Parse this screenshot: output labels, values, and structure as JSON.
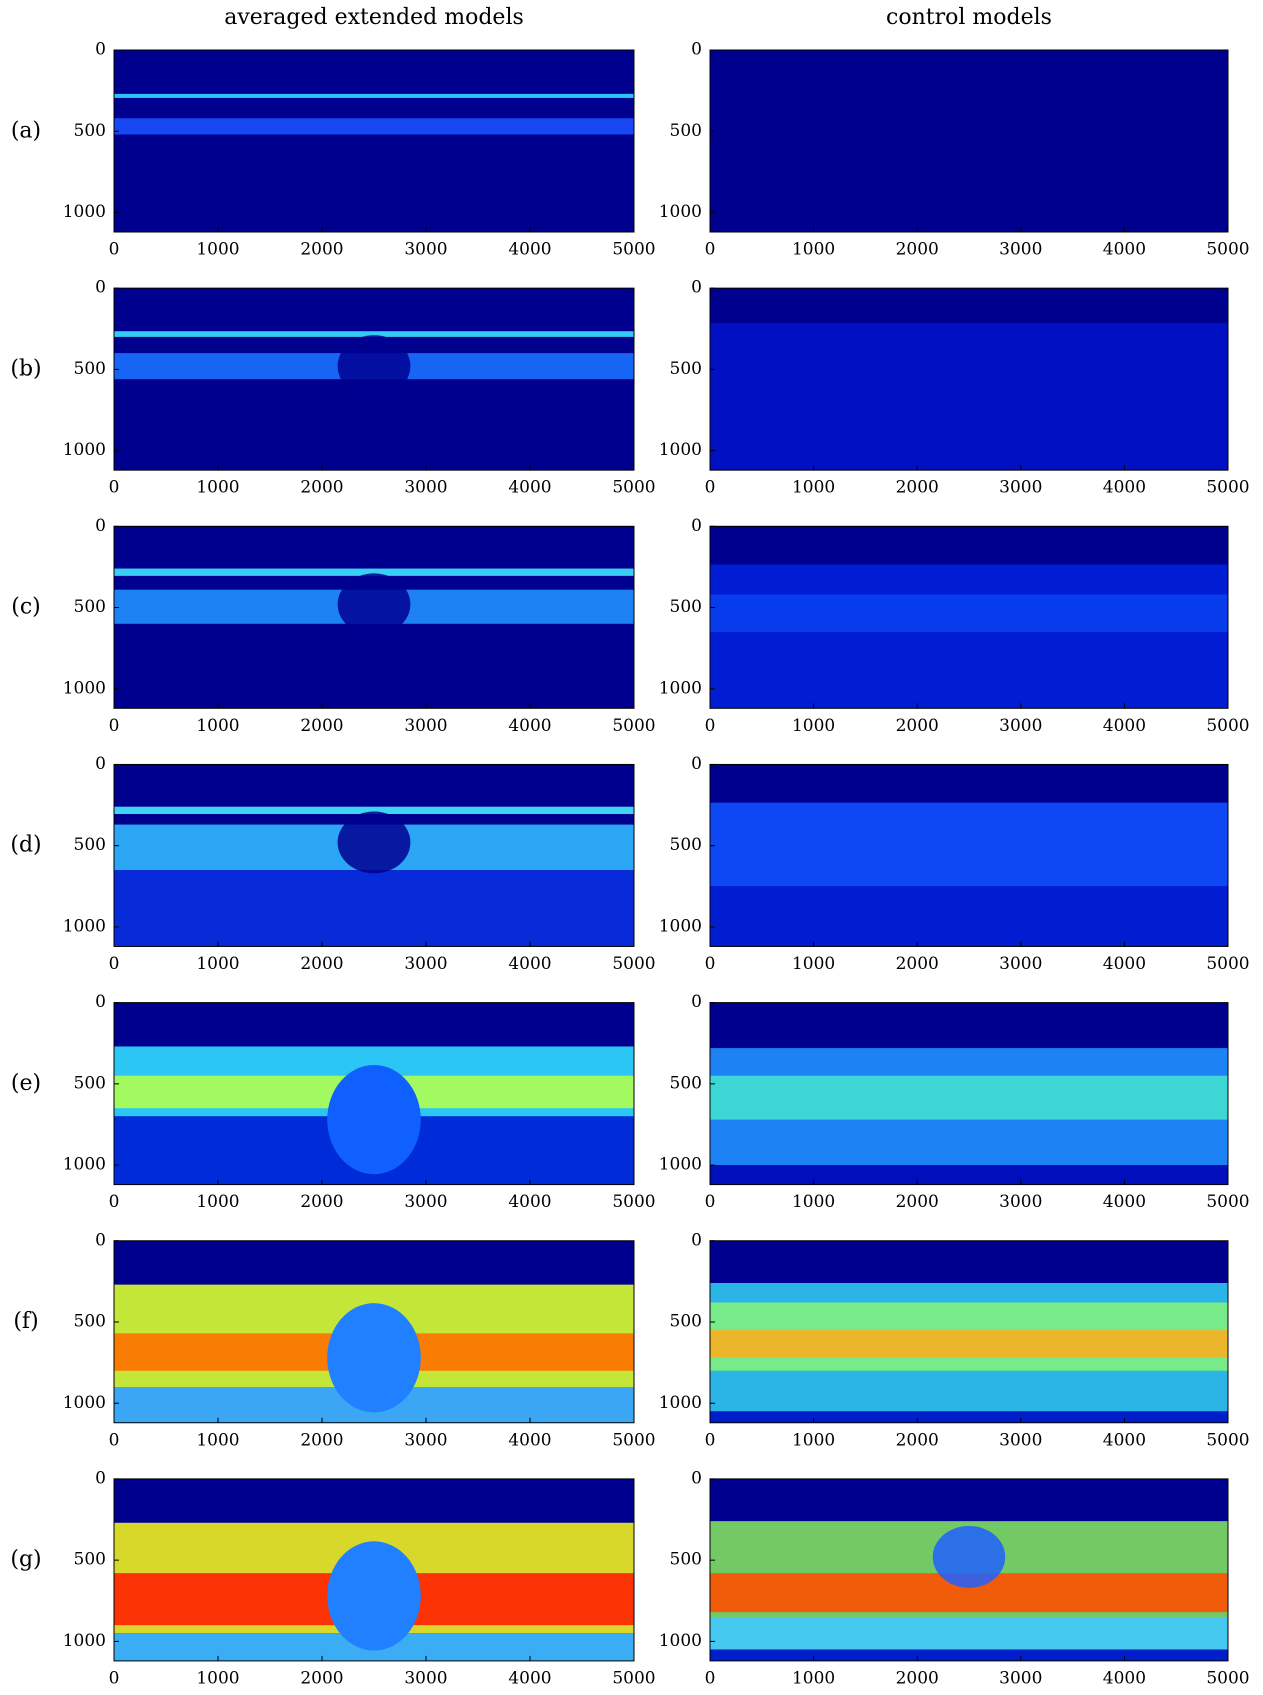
{
  "column_titles": [
    "averaged extended models",
    "control models"
  ],
  "row_labels": [
    "(a)",
    "(b)",
    "(c)",
    "(d)",
    "(e)",
    "(f)",
    "(g)"
  ],
  "chart_data": [
    {
      "type": "heatmap",
      "xlim": [
        0,
        5000
      ],
      "xticks": [
        0,
        1000,
        2000,
        3000,
        4000,
        5000
      ],
      "ylim": [
        0,
        1120
      ],
      "yticks": [
        0,
        500,
        1000
      ],
      "y_inverted": true
    },
    {
      "type": "heatmap",
      "xlim": [
        0,
        5000
      ],
      "xticks": [
        0,
        1000,
        2000,
        3000,
        4000,
        5000
      ],
      "ylim": [
        0,
        1120
      ],
      "yticks": [
        0,
        500,
        1000
      ],
      "y_inverted": true
    },
    {
      "type": "heatmap",
      "xlim": [
        0,
        5000
      ],
      "xticks": [
        0,
        1000,
        2000,
        3000,
        4000,
        5000
      ],
      "ylim": [
        0,
        1120
      ],
      "yticks": [
        0,
        500,
        1000
      ],
      "y_inverted": true
    },
    {
      "type": "heatmap",
      "xlim": [
        0,
        5000
      ],
      "xticks": [
        0,
        1000,
        2000,
        3000,
        4000,
        5000
      ],
      "ylim": [
        0,
        1120
      ],
      "yticks": [
        0,
        500,
        1000
      ],
      "y_inverted": true
    },
    {
      "type": "heatmap",
      "xlim": [
        0,
        5000
      ],
      "xticks": [
        0,
        1000,
        2000,
        3000,
        4000,
        5000
      ],
      "ylim": [
        0,
        1120
      ],
      "yticks": [
        0,
        500,
        1000
      ],
      "y_inverted": true
    },
    {
      "type": "heatmap",
      "xlim": [
        0,
        5000
      ],
      "xticks": [
        0,
        1000,
        2000,
        3000,
        4000,
        5000
      ],
      "ylim": [
        0,
        1120
      ],
      "yticks": [
        0,
        500,
        1000
      ],
      "y_inverted": true
    },
    {
      "type": "heatmap",
      "xlim": [
        0,
        5000
      ],
      "xticks": [
        0,
        1000,
        2000,
        3000,
        4000,
        5000
      ],
      "ylim": [
        0,
        1120
      ],
      "yticks": [
        0,
        500,
        1000
      ],
      "y_inverted": true
    },
    {
      "type": "heatmap",
      "xlim": [
        0,
        5000
      ],
      "xticks": [
        0,
        1000,
        2000,
        3000,
        4000,
        5000
      ],
      "ylim": [
        0,
        1120
      ],
      "yticks": [
        0,
        500,
        1000
      ],
      "y_inverted": true
    },
    {
      "type": "heatmap",
      "xlim": [
        0,
        5000
      ],
      "xticks": [
        0,
        1000,
        2000,
        3000,
        4000,
        5000
      ],
      "ylim": [
        0,
        1120
      ],
      "yticks": [
        0,
        500,
        1000
      ],
      "y_inverted": true
    },
    {
      "type": "heatmap",
      "xlim": [
        0,
        5000
      ],
      "xticks": [
        0,
        1000,
        2000,
        3000,
        4000,
        5000
      ],
      "ylim": [
        0,
        1120
      ],
      "yticks": [
        0,
        500,
        1000
      ],
      "y_inverted": true
    },
    {
      "type": "heatmap",
      "xlim": [
        0,
        5000
      ],
      "xticks": [
        0,
        1000,
        2000,
        3000,
        4000,
        5000
      ],
      "ylim": [
        0,
        1120
      ],
      "yticks": [
        0,
        500,
        1000
      ],
      "y_inverted": true
    },
    {
      "type": "heatmap",
      "xlim": [
        0,
        5000
      ],
      "xticks": [
        0,
        1000,
        2000,
        3000,
        4000,
        5000
      ],
      "ylim": [
        0,
        1120
      ],
      "yticks": [
        0,
        500,
        1000
      ],
      "y_inverted": true
    },
    {
      "type": "heatmap",
      "xlim": [
        0,
        5000
      ],
      "xticks": [
        0,
        1000,
        2000,
        3000,
        4000,
        5000
      ],
      "ylim": [
        0,
        1120
      ],
      "yticks": [
        0,
        500,
        1000
      ],
      "y_inverted": true
    },
    {
      "type": "heatmap",
      "xlim": [
        0,
        5000
      ],
      "xticks": [
        0,
        1000,
        2000,
        3000,
        4000,
        5000
      ],
      "ylim": [
        0,
        1120
      ],
      "yticks": [
        0,
        500,
        1000
      ],
      "y_inverted": true
    }
  ]
}
